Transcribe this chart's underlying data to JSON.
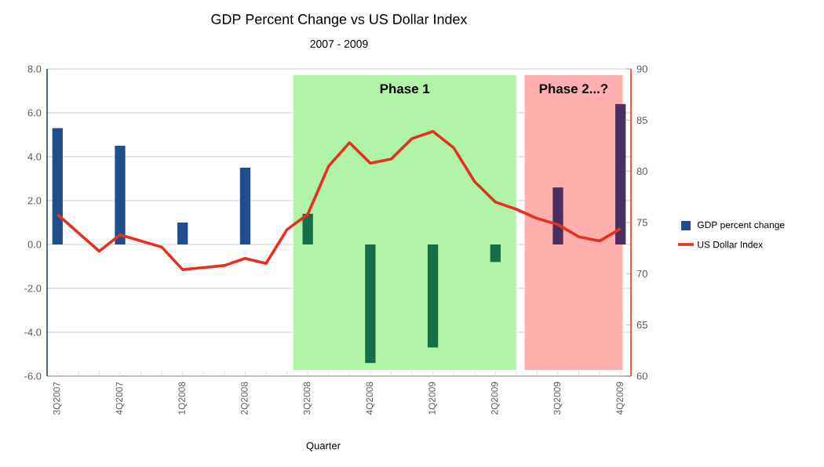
{
  "chart_data": {
    "type": "bar",
    "title": "GDP Percent Change vs US Dollar Index",
    "subtitle": "2007 - 2009",
    "xlabel": "Quarter",
    "categories": [
      "3Q2007",
      null,
      null,
      "4Q2007",
      null,
      null,
      "1Q2008",
      null,
      null,
      "2Q2008",
      null,
      null,
      "3Q2008",
      null,
      null,
      "4Q2008",
      null,
      null,
      "1Q2009",
      null,
      null,
      "2Q2009",
      null,
      null,
      "3Q2009",
      null,
      null,
      "4Q2009"
    ],
    "series": [
      {
        "name": "GDP percent change",
        "color": "#1f4e8c",
        "colors": [
          "#1f4e8c",
          null,
          null,
          "#1f4e8c",
          null,
          null,
          "#1f4e8c",
          null,
          null,
          "#1f4e8c",
          null,
          null,
          "#15704a",
          null,
          null,
          "#15704a",
          null,
          null,
          "#15704a",
          null,
          null,
          "#15704a",
          null,
          null,
          "#4a2f63",
          null,
          null,
          "#4a2f63"
        ],
        "values": [
          5.3,
          null,
          null,
          4.5,
          null,
          null,
          1.0,
          null,
          null,
          3.5,
          null,
          null,
          1.4,
          null,
          null,
          -5.4,
          null,
          null,
          -4.7,
          null,
          null,
          -0.8,
          null,
          null,
          2.6,
          null,
          null,
          6.4
        ]
      },
      {
        "name": "US Dollar Index",
        "type": "line",
        "axis": "y2",
        "color": "#e8301c",
        "values": [
          75.8,
          74.0,
          72.2,
          73.8,
          73.2,
          72.6,
          70.4,
          70.6,
          70.8,
          71.5,
          71.0,
          74.3,
          75.8,
          80.5,
          82.8,
          80.8,
          81.2,
          83.2,
          83.9,
          82.3,
          79.0,
          77.0,
          76.3,
          75.4,
          74.8,
          73.6,
          73.2,
          74.4
        ]
      }
    ],
    "ylim": [
      -6,
      8
    ],
    "yticks": [
      {
        "value": -6,
        "label": "-6.0"
      },
      {
        "value": -4,
        "label": "-4.0"
      },
      {
        "value": -2,
        "label": "-2.0"
      },
      {
        "value": 0,
        "label": "0.0"
      },
      {
        "value": 2,
        "label": "2.0"
      },
      {
        "value": 4,
        "label": "4.0"
      },
      {
        "value": 6,
        "label": "6.0"
      },
      {
        "value": 8,
        "label": "8.0"
      }
    ],
    "y2lim": [
      60,
      90
    ],
    "y2ticks": [
      60,
      65,
      70,
      75,
      80,
      85,
      90
    ],
    "annotations": [
      "Phase 1",
      "Phase 2...?"
    ],
    "grid": "y",
    "legend": "right",
    "marker": "none",
    "line_style": "solid"
  }
}
